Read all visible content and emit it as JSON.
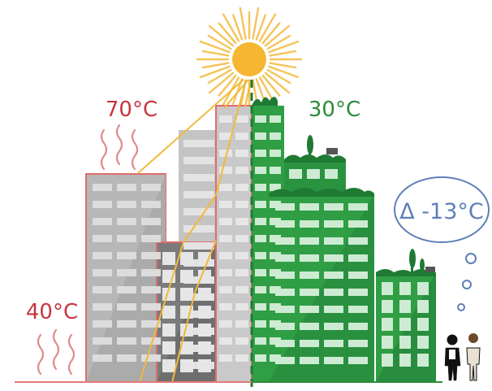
{
  "labels": {
    "hot_roof_temp": "70°C",
    "ground_temp": "40°C",
    "green_roof_temp": "30°C",
    "delta_temp": "Δ -13°C"
  },
  "colors": {
    "hot_red": "#c6363e",
    "green_text": "#2e8b3a",
    "sun": "#f6b632",
    "ray": "#f5c45a",
    "grey_building": "#b9b9b9",
    "dark_building": "#7b7b7b",
    "green_building": "#2f9e44",
    "dark_green": "#1f7a33",
    "bubble": "#5e7fb8"
  }
}
